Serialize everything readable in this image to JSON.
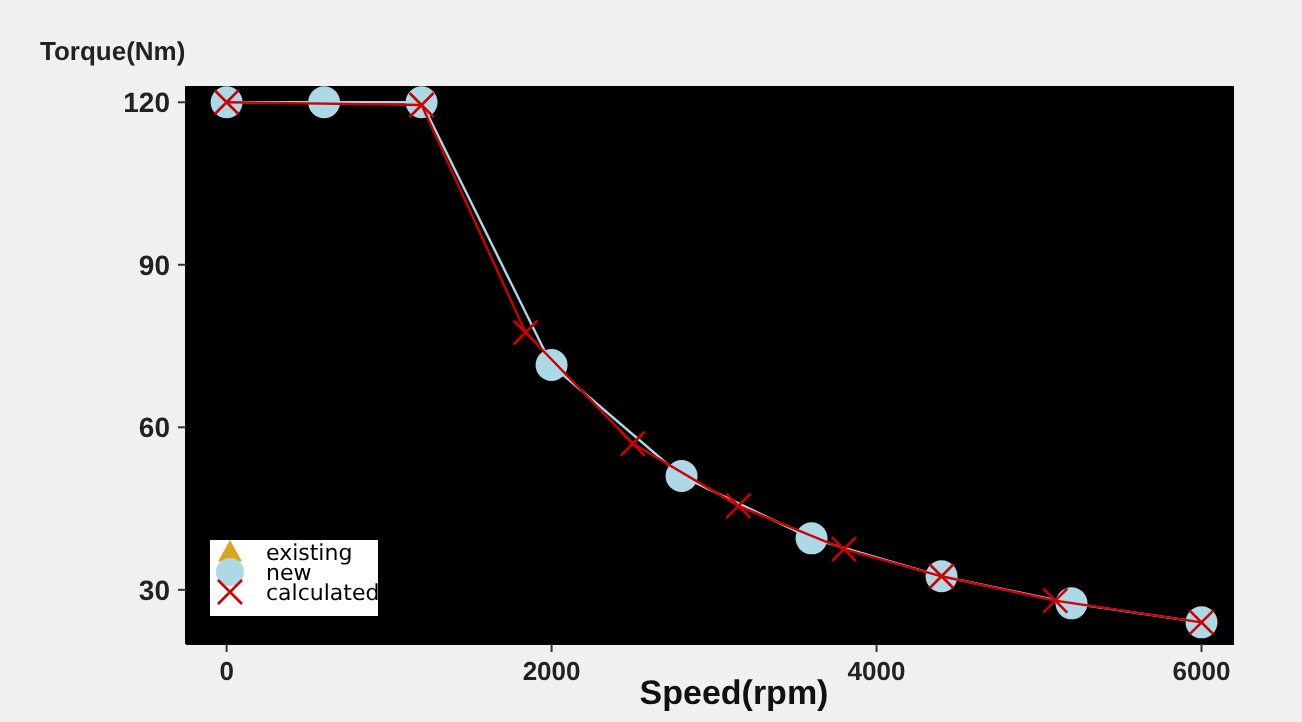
{
  "chart_data": {
    "type": "line",
    "xlabel": "Speed(rpm)",
    "ylabel": "Torque(Nm)",
    "xlim": [
      -250,
      6200
    ],
    "ylim": [
      20,
      123
    ],
    "xticks": [
      0,
      2000,
      4000,
      6000
    ],
    "yticks": [
      30,
      60,
      90,
      120
    ],
    "grid": false,
    "legend": "bottom left",
    "series": [
      {
        "name": "existing",
        "color": "#daa520",
        "marker": "triangle"
      },
      {
        "name": "new",
        "color": "#add8e6",
        "marker": "circle",
        "x": [
          0,
          600,
          1200,
          2000,
          2800,
          3600,
          4400,
          5200,
          6000
        ],
        "values": [
          120,
          120,
          120,
          71.5,
          51,
          39.5,
          32.5,
          27.5,
          24
        ]
      },
      {
        "name": "calculated",
        "color": "#cc0000",
        "marker": "cross",
        "x": [
          0,
          1200,
          1840,
          2500,
          3150,
          3800,
          4400,
          5100,
          6000
        ],
        "values": [
          120,
          119.5,
          77.5,
          57,
          45.5,
          37.5,
          32.5,
          28,
          24
        ]
      }
    ]
  }
}
